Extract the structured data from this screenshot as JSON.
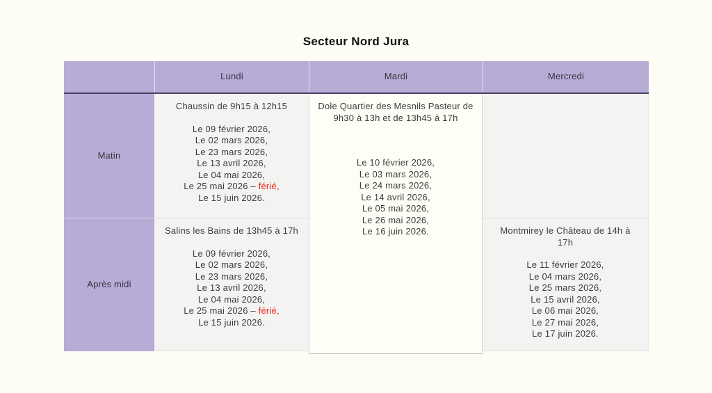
{
  "page": {
    "title": "Secteur Nord Jura"
  },
  "colors": {
    "header_purple": "#b6acd6",
    "header_underline": "#474064",
    "body_cell_gray": "#f3f3f1",
    "mardi_cell_white": "#fffef6",
    "holiday_red": "#e9261d",
    "text": "#3c3c3c"
  },
  "table": {
    "columns": [
      "",
      "Lundi",
      "Mardi",
      "Mercredi"
    ],
    "row_labels": [
      "Matin",
      "Après midi"
    ],
    "cells": {
      "lundi_matin": {
        "heading": "Chaussin de 9h15 à 12h15",
        "dates": [
          "Le 09 février 2026,",
          "Le 02 mars 2026,",
          "Le 23 mars 2026,",
          "Le 13 avril 2026,",
          "Le 04 mai 2026,",
          {
            "text": "Le 25 mai 2026 – ",
            "red": "férié,"
          },
          "Le 15 juin 2026."
        ]
      },
      "mardi_span": {
        "heading": "Dole Quartier des Mesnils Pasteur de 9h30 à 13h et de 13h45 à 17h",
        "dates": [
          "Le 10 février 2026,",
          "Le 03 mars 2026,",
          "Le 24 mars 2026,",
          "Le 14 avril 2026,",
          "Le 05 mai 2026,",
          "Le 26 mai 2026,",
          "Le 16 juin 2026."
        ]
      },
      "lundi_apres": {
        "heading": "Salins les Bains de 13h45 à 17h",
        "dates": [
          "Le 09 février 2026,",
          "Le 02 mars 2026,",
          "Le 23 mars 2026,",
          "Le 13 avril 2026,",
          "Le 04 mai 2026,",
          {
            "text": "Le 25 mai 2026 – ",
            "red": "férié,"
          },
          "Le 15 juin 2026."
        ]
      },
      "mercredi_apres": {
        "heading": "Montmirey le Château de 14h à 17h",
        "dates": [
          "Le 11 février 2026,",
          "Le 04 mars 2026,",
          "Le 25 mars 2026,",
          "Le 15 avril 2026,",
          "Le 06 mai 2026,",
          "Le 27 mai 2026,",
          "Le 17 juin 2026."
        ]
      }
    }
  }
}
